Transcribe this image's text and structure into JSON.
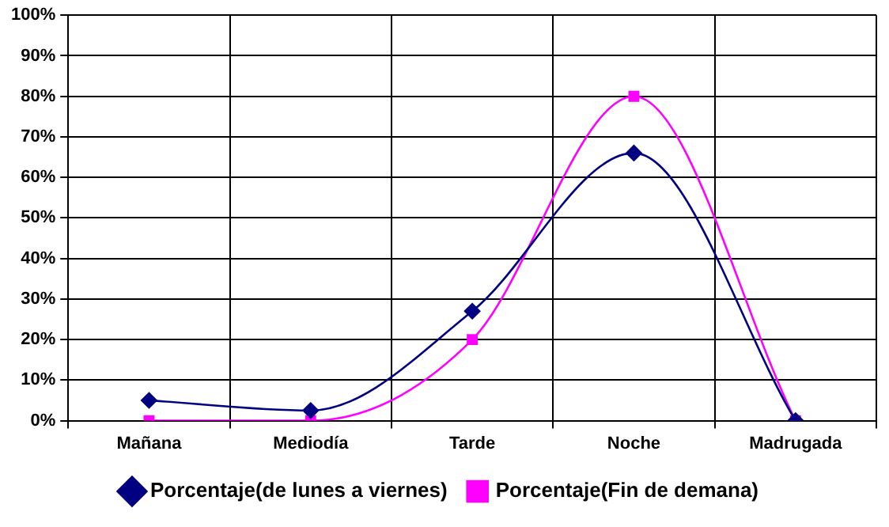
{
  "chart_data": {
    "type": "line",
    "categories": [
      "Mañana",
      "Mediodía",
      "Tarde",
      "Noche",
      "Madrugada"
    ],
    "series": [
      {
        "name": "Porcentaje(de lunes a viernes)",
        "color": "#000080",
        "marker": "diamond",
        "values": [
          5,
          2.5,
          27,
          66,
          0
        ]
      },
      {
        "name": "Porcentaje(Fin de demana)",
        "color": "#ff00ff",
        "marker": "square",
        "values": [
          0,
          0,
          20,
          80,
          0
        ]
      }
    ],
    "ylim": [
      0,
      100
    ],
    "yticks": [
      {
        "value": 0,
        "label": "0%"
      },
      {
        "value": 10,
        "label": "10%"
      },
      {
        "value": 20,
        "label": "20%"
      },
      {
        "value": 30,
        "label": "30%"
      },
      {
        "value": 40,
        "label": "40%"
      },
      {
        "value": 50,
        "label": "50%"
      },
      {
        "value": 60,
        "label": "60%"
      },
      {
        "value": 70,
        "label": "70%"
      },
      {
        "value": 80,
        "label": "80%"
      },
      {
        "value": 90,
        "label": "90%"
      },
      {
        "value": 100,
        "label": "100%"
      }
    ],
    "grid": true,
    "legend": "bottom",
    "line_style": "solid"
  }
}
